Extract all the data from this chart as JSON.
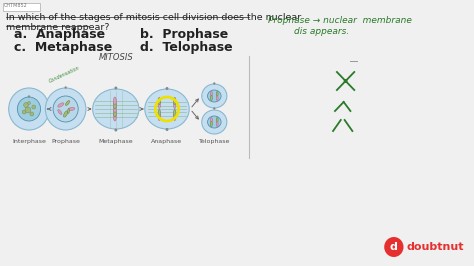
{
  "bg_color": "#f0f0f0",
  "title_line1": "In which of the stages of mitosis cell division does the nuclear",
  "title_line2": "membrane reappear?",
  "options_left": [
    "a.  Anaphase",
    "c.  Metaphase"
  ],
  "options_right": [
    "b.  Prophase",
    "d.  Telophase"
  ],
  "mitosis_label": "MITOSIS",
  "stage_labels": [
    "Interphase",
    "Prophase",
    "Metaphase",
    "Anaphase",
    "Telophase"
  ],
  "handwritten_line1": "Prophase → nuclear  membrane",
  "handwritten_line2": "dis appears.",
  "header_label": "CHТМ852",
  "light_blue_outer": "#c5dff0",
  "light_blue_inner": "#9fcde0",
  "medium_blue": "#a0c8e0",
  "cell_edge": "#88b8d0",
  "nucleus_fill": "#7ab5d0",
  "nucleus_edge": "#5090b0",
  "pink_chrom": "#e0a0c0",
  "pink_edge": "#c07090",
  "green_spindle": "#60a060",
  "green_handwrite": "#2a7a2a",
  "green_label": "#3a8a3a",
  "yellow_circle": "#f0e000",
  "divider_color": "#bbbbbb",
  "arrow_color": "#666666",
  "text_color": "#222222",
  "label_color": "#555555",
  "doubtnut_red": "#e63030",
  "figsize": [
    4.74,
    2.66
  ],
  "dpi": 100
}
